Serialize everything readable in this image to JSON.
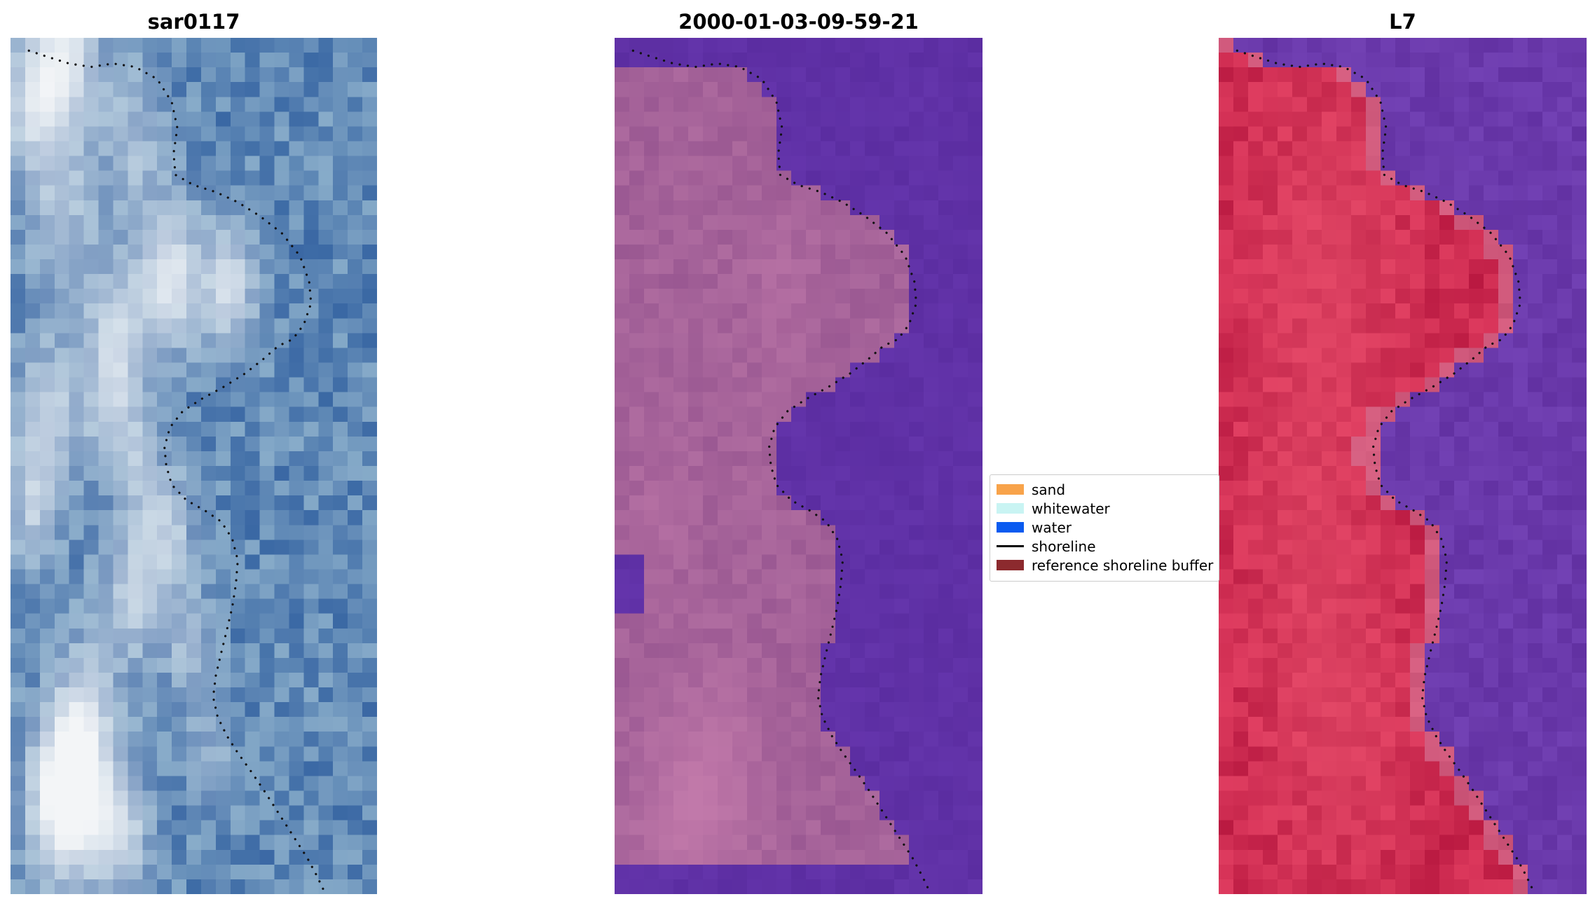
{
  "figure": {
    "background": "#ffffff",
    "grid": {
      "cols": 25,
      "rows": 58
    },
    "titles": {
      "panel1": "sar0117",
      "panel2": "2000-01-03-09-59-21",
      "panel3": "L7"
    },
    "legend": {
      "entries": [
        {
          "label": "sand",
          "color": "#f8a34a",
          "kind": "patch"
        },
        {
          "label": "whitewater",
          "color": "#c9f4f3",
          "kind": "patch"
        },
        {
          "label": "water",
          "color": "#0a5bf0",
          "kind": "patch"
        },
        {
          "label": "shoreline",
          "color": "#000000",
          "kind": "line"
        },
        {
          "label": "reference shoreline buffer",
          "color": "#8c2a2e",
          "kind": "patch"
        }
      ]
    },
    "panels": [
      {
        "kind": "sar",
        "seed": 11,
        "colors": {
          "deep": "#3a68a4",
          "light": "#87abc9",
          "bright": "#f3f5f7"
        },
        "highlights": [
          [
            0.15,
            0.02,
            0.1,
            0.85
          ],
          [
            0.05,
            0.08,
            0.08,
            0.6
          ],
          [
            0.34,
            0.12,
            0.09,
            0.45
          ],
          [
            0.14,
            0.21,
            0.1,
            0.5
          ],
          [
            0.44,
            0.28,
            0.09,
            0.85
          ],
          [
            0.6,
            0.29,
            0.07,
            0.8
          ],
          [
            0.29,
            0.34,
            0.09,
            0.55
          ],
          [
            0.1,
            0.44,
            0.09,
            0.65
          ],
          [
            0.28,
            0.43,
            0.08,
            0.5
          ],
          [
            0.06,
            0.55,
            0.07,
            0.55
          ],
          [
            0.44,
            0.57,
            0.07,
            0.5
          ],
          [
            0.34,
            0.64,
            0.09,
            0.65
          ],
          [
            0.49,
            0.71,
            0.07,
            0.45
          ],
          [
            0.21,
            0.78,
            0.09,
            0.55
          ],
          [
            0.15,
            0.885,
            0.1,
            1.3
          ],
          [
            0.3,
            0.925,
            0.08,
            0.7
          ],
          [
            0.54,
            0.84,
            0.06,
            0.35
          ],
          [
            0.36,
            0.5,
            0.06,
            0.4
          ]
        ]
      },
      {
        "kind": "classified",
        "seed": 22,
        "colors": {
          "water": "#5b2da1",
          "water2": "#6a3ab2",
          "land": "#9a5892",
          "land2": "#ae6b9f",
          "bright": "#c97fae"
        },
        "water_strips": [
          [
            0,
            1,
            0.958,
            1
          ],
          [
            0,
            0.08,
            0.612,
            0.676
          ],
          [
            0,
            0.3,
            0,
            0.026
          ]
        ],
        "highlights": [
          [
            0.28,
            0.87,
            0.13,
            0.55
          ],
          [
            0.15,
            0.93,
            0.12,
            0.45
          ],
          [
            0.45,
            0.3,
            0.1,
            0.3
          ],
          [
            0.12,
            0.56,
            0.09,
            0.25
          ]
        ]
      },
      {
        "kind": "falsecolor",
        "seed": 33,
        "colors": {
          "water": "#6231a2",
          "water2": "#7d4cc0",
          "land": "#b8173f",
          "land2": "#de3a5e",
          "bright": "#ea5570",
          "fringe": "#d488a8"
        },
        "highlights": [
          [
            0.3,
            0.24,
            0.22,
            0.5
          ],
          [
            0.22,
            0.55,
            0.18,
            0.35
          ],
          [
            0.33,
            0.8,
            0.2,
            0.5
          ]
        ]
      }
    ]
  },
  "chart_data": {
    "type": "heatmap",
    "layout": "three image subplots side by side with shared dotted shoreline overlay and a legend box",
    "panel_titles": [
      "sar0117",
      "2000-01-03-09-59-21",
      "L7"
    ],
    "legend_entries": [
      "sand",
      "whitewater",
      "water",
      "shoreline",
      "reference shoreline buffer"
    ],
    "legend_colors": [
      "#f8a34a",
      "#c9f4f3",
      "#0a5bf0",
      "#000000",
      "#8c2a2e"
    ],
    "land_side": "left",
    "shoreline_normalized_xy": [
      [
        0.05,
        0.015
      ],
      [
        0.1,
        0.022
      ],
      [
        0.16,
        0.03
      ],
      [
        0.22,
        0.034
      ],
      [
        0.28,
        0.03
      ],
      [
        0.34,
        0.034
      ],
      [
        0.4,
        0.048
      ],
      [
        0.44,
        0.075
      ],
      [
        0.455,
        0.105
      ],
      [
        0.445,
        0.135
      ],
      [
        0.45,
        0.16
      ],
      [
        0.5,
        0.172
      ],
      [
        0.56,
        0.18
      ],
      [
        0.62,
        0.192
      ],
      [
        0.68,
        0.208
      ],
      [
        0.74,
        0.228
      ],
      [
        0.79,
        0.255
      ],
      [
        0.815,
        0.285
      ],
      [
        0.82,
        0.31
      ],
      [
        0.8,
        0.335
      ],
      [
        0.77,
        0.352
      ],
      [
        0.73,
        0.36
      ],
      [
        0.69,
        0.375
      ],
      [
        0.64,
        0.392
      ],
      [
        0.58,
        0.408
      ],
      [
        0.52,
        0.422
      ],
      [
        0.47,
        0.436
      ],
      [
        0.435,
        0.455
      ],
      [
        0.42,
        0.478
      ],
      [
        0.425,
        0.5
      ],
      [
        0.44,
        0.522
      ],
      [
        0.48,
        0.54
      ],
      [
        0.53,
        0.552
      ],
      [
        0.575,
        0.565
      ],
      [
        0.605,
        0.585
      ],
      [
        0.62,
        0.61
      ],
      [
        0.615,
        0.638
      ],
      [
        0.605,
        0.665
      ],
      [
        0.59,
        0.692
      ],
      [
        0.575,
        0.718
      ],
      [
        0.56,
        0.745
      ],
      [
        0.553,
        0.77
      ],
      [
        0.565,
        0.793
      ],
      [
        0.59,
        0.815
      ],
      [
        0.62,
        0.835
      ],
      [
        0.655,
        0.856
      ],
      [
        0.69,
        0.878
      ],
      [
        0.72,
        0.898
      ],
      [
        0.75,
        0.918
      ],
      [
        0.78,
        0.938
      ],
      [
        0.81,
        0.958
      ],
      [
        0.835,
        0.978
      ],
      [
        0.855,
        0.996
      ]
    ]
  }
}
